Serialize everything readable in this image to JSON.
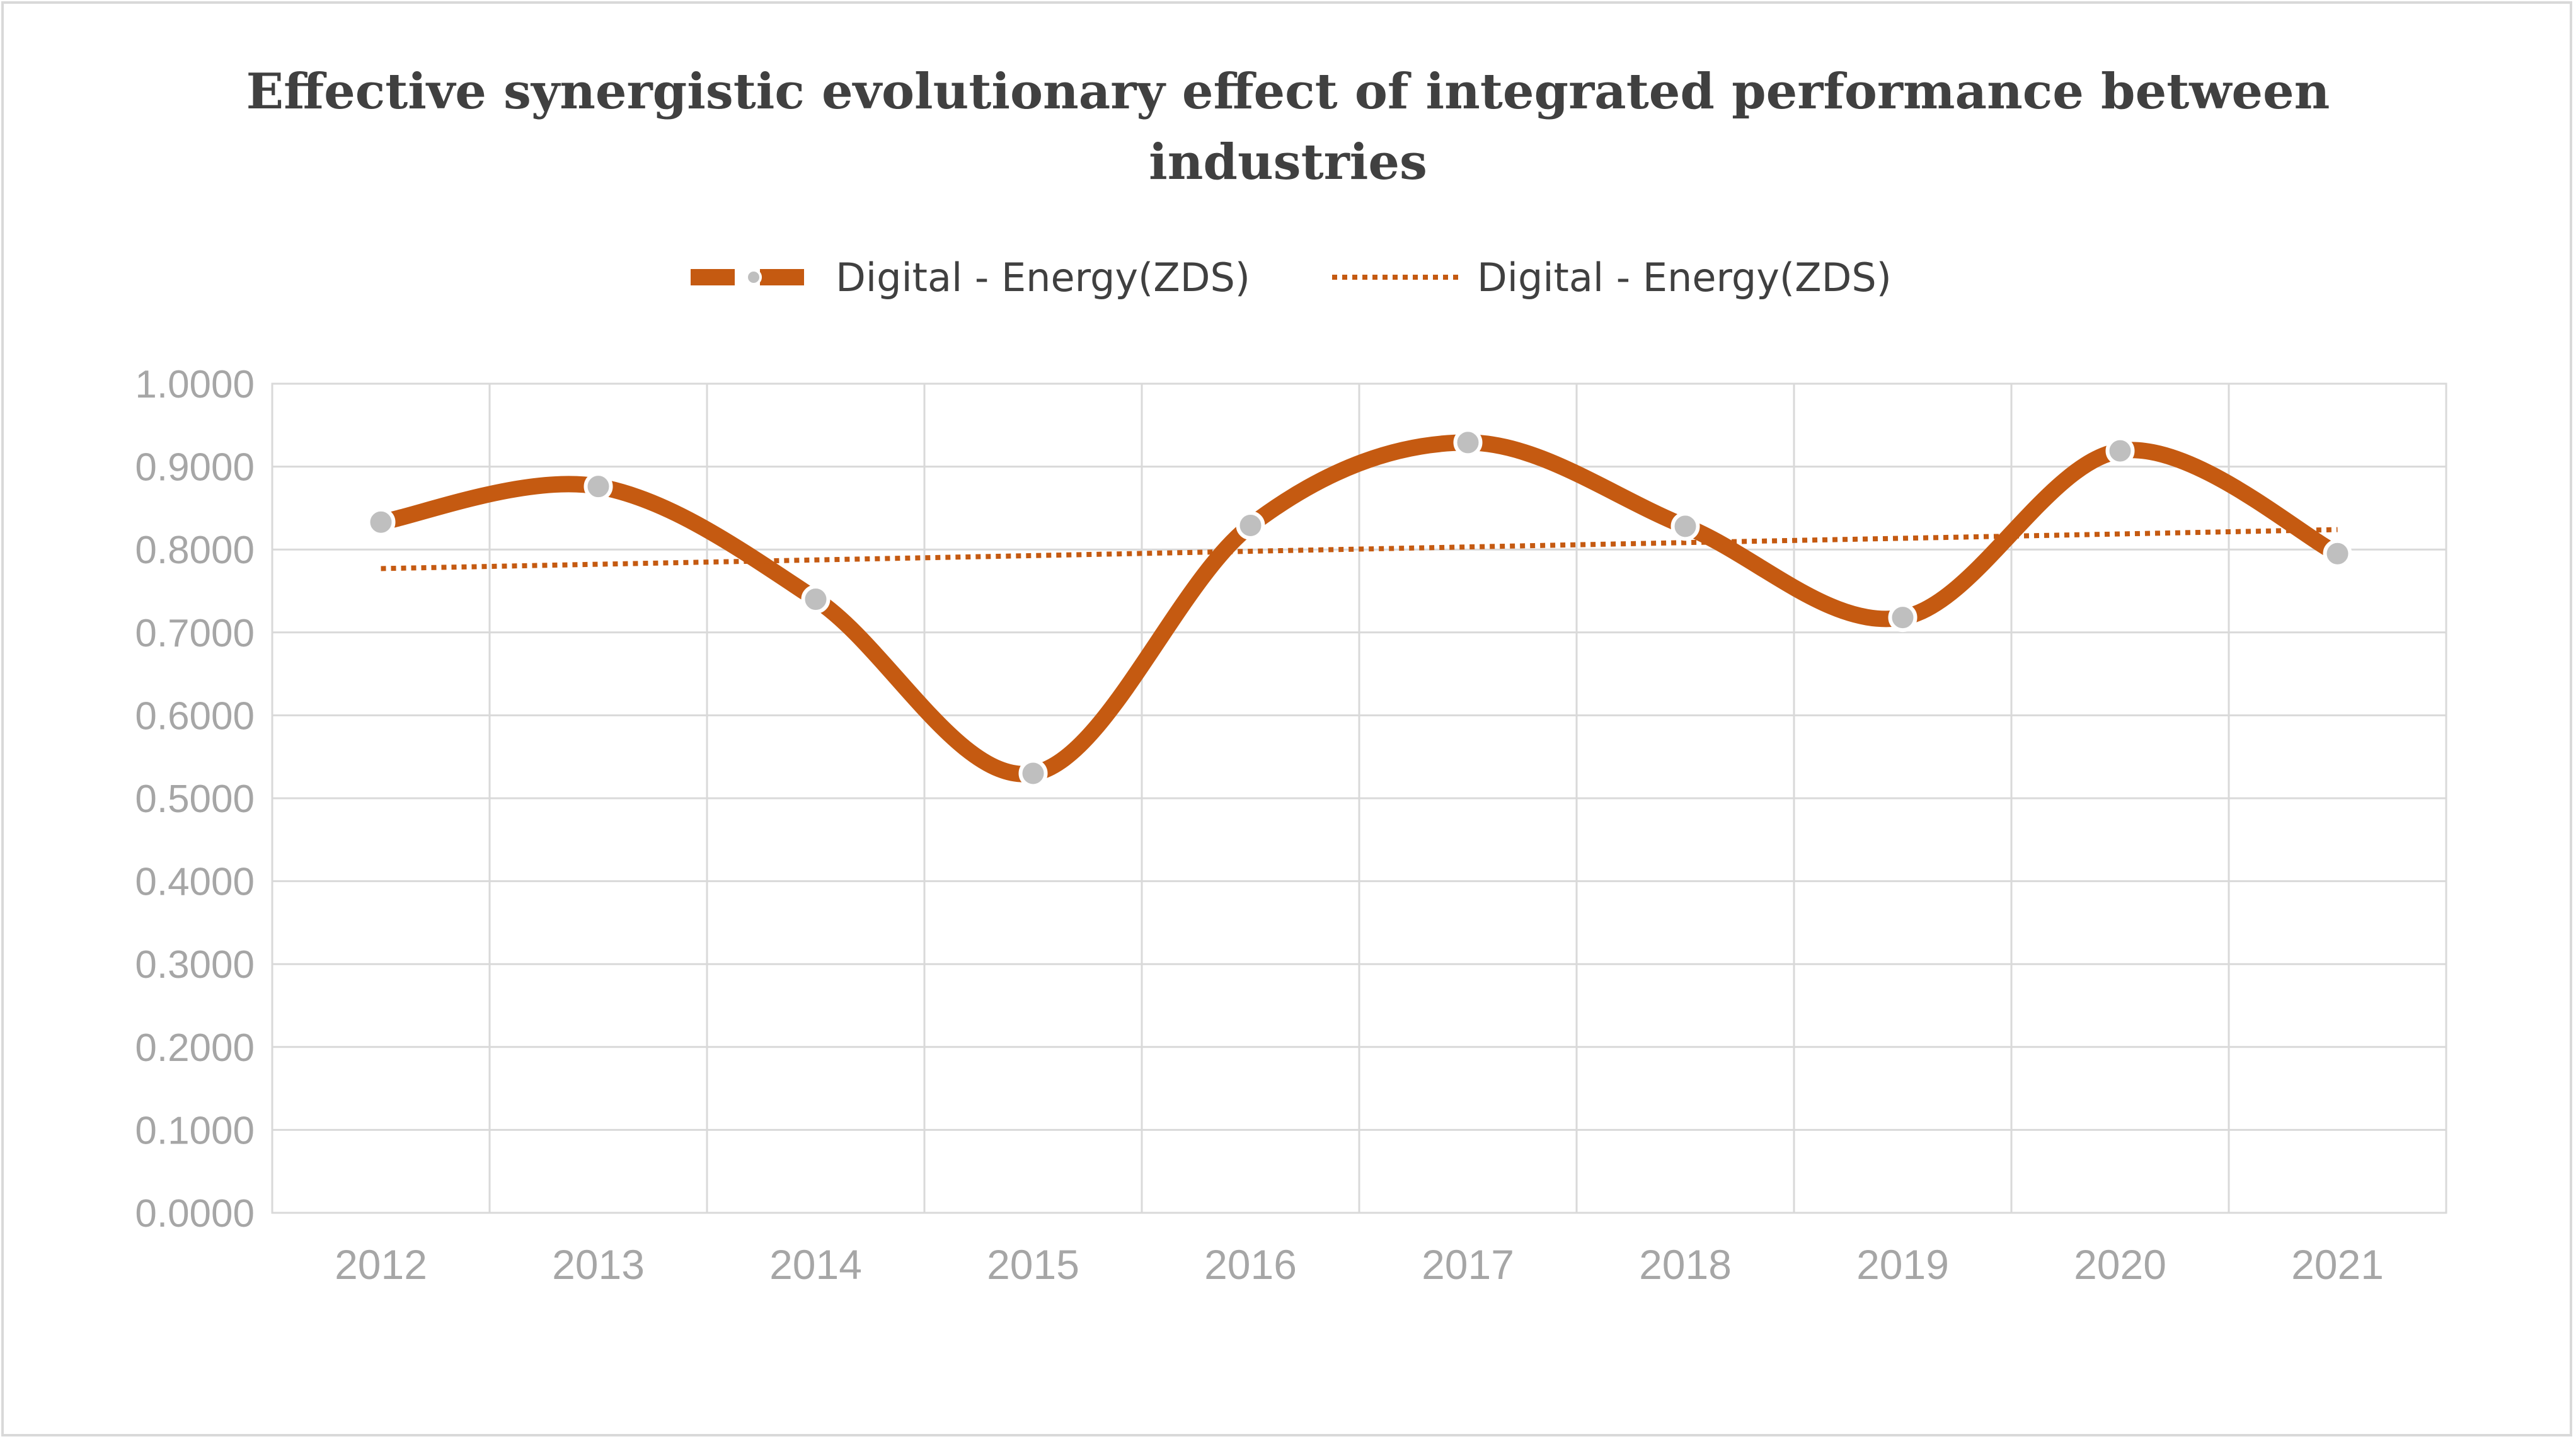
{
  "chart_data": {
    "type": "line",
    "title": "Effective synergistic evolutionary effect of integrated performance between industries",
    "title_lines": [
      "Effective synergistic evolutionary effect of integrated performance between",
      "industries"
    ],
    "categories": [
      "2012",
      "2013",
      "2014",
      "2015",
      "2016",
      "2017",
      "2018",
      "2019",
      "2020",
      "2021"
    ],
    "series": [
      {
        "name": "Digital - Energy(ZDS)",
        "style": "smoothed line with markers",
        "values": [
          0.833,
          0.876,
          0.74,
          0.53,
          0.829,
          0.929,
          0.828,
          0.718,
          0.919,
          0.795
        ]
      }
    ],
    "trendline": {
      "name": "Digital - Energy(ZDS)",
      "type": "linear",
      "start": 0.777,
      "end": 0.824
    },
    "ylim": [
      0,
      1
    ],
    "y_ticks": [
      "0.0000",
      "0.1000",
      "0.2000",
      "0.3000",
      "0.4000",
      "0.5000",
      "0.6000",
      "0.7000",
      "0.8000",
      "0.9000",
      "1.0000"
    ],
    "xlabel": "",
    "ylabel": "",
    "grid": true,
    "legend_position": "top",
    "colors": {
      "series": "#c55a11",
      "marker": "#bfbfbf",
      "grid": "#d9d9d9",
      "text": "#404040",
      "tick": "#a6a6a6"
    }
  }
}
